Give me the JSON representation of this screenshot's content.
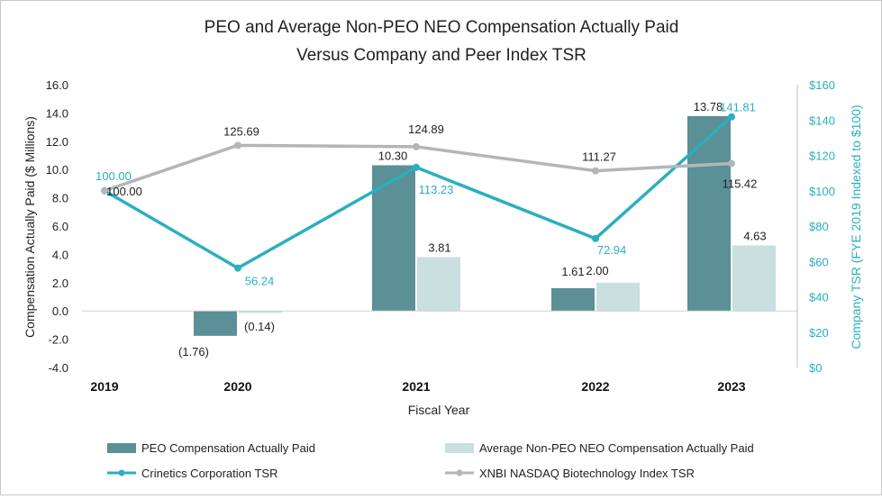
{
  "chart_data": {
    "type": "bar",
    "title_lines": [
      "PEO and Average Non-PEO NEO Compensation Actually Paid",
      "Versus Company and Peer Index TSR"
    ],
    "xlabel": "Fiscal Year",
    "ylabel": "Compensation Actually Paid ($ Millions)",
    "y2label": "Company TSR (FYE 2019 Indexed to $100)",
    "categories": [
      "2019",
      "2020",
      "2021",
      "2022",
      "2023"
    ],
    "ylim": [
      -4,
      16
    ],
    "yticks": [
      "-4.0",
      "-2.0",
      "0.0",
      "2.0",
      "4.0",
      "6.0",
      "8.0",
      "10.0",
      "12.0",
      "14.0",
      "16.0"
    ],
    "y2lim": [
      0,
      160
    ],
    "y2ticks": [
      "$0",
      "$20",
      "$40",
      "$60",
      "$80",
      "$100",
      "$120",
      "$140",
      "$160"
    ],
    "bar_series": [
      {
        "name": "PEO Compensation Actually Paid",
        "color": "#5a9096",
        "values": [
          null,
          -1.76,
          10.3,
          1.61,
          13.78
        ],
        "labels": [
          "",
          "(1.76)",
          "10.30",
          "1.61",
          "13.78"
        ]
      },
      {
        "name": "Average Non-PEO NEO Compensation Actually Paid",
        "color": "#c9dfe0",
        "values": [
          null,
          -0.14,
          3.81,
          2.0,
          4.63
        ],
        "labels": [
          "",
          "(0.14)",
          "3.81",
          "2.00",
          "4.63"
        ]
      }
    ],
    "line_series": [
      {
        "name": "Crinetics Corporation TSR",
        "color": "#2aafc0",
        "values": [
          100.0,
          56.24,
          113.23,
          72.94,
          141.81
        ],
        "labels": [
          "100.00",
          "56.24",
          "113.23",
          "72.94",
          "141.81"
        ]
      },
      {
        "name": "XNBI NASDAQ Biotechnology Index TSR",
        "color": "#b3b6b9",
        "values": [
          100.0,
          125.69,
          124.89,
          111.27,
          115.42
        ],
        "labels": [
          "100.00",
          "125.69",
          "124.89",
          "111.27",
          "115.42"
        ]
      }
    ],
    "legend": "bottom"
  }
}
